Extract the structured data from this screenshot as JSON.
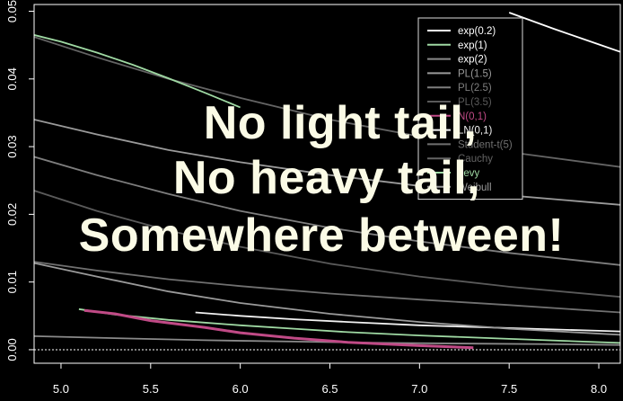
{
  "chart_data": {
    "type": "line",
    "xlim": [
      4.85,
      8.12
    ],
    "ylim": [
      -0.002,
      0.051
    ],
    "x_ticks": [
      "5.0",
      "5.5",
      "6.0",
      "6.5",
      "7.0",
      "7.5",
      "8.0"
    ],
    "y_ticks": [
      "0.00",
      "0.01",
      "0.02",
      "0.03",
      "0.04",
      "0.05"
    ],
    "grid": false,
    "legend_position": "top-right",
    "series": [
      {
        "name": "exp(0.2)",
        "color": "#ffffff",
        "x": [
          7.5,
          7.75,
          8.0,
          8.12
        ],
        "y": [
          0.0498,
          0.0474,
          0.0451,
          0.044
        ]
      },
      {
        "name": "exp(1)",
        "color": "#9fd9a3",
        "x": [
          5.1,
          5.3,
          5.6,
          5.8,
          6.0,
          6.3,
          6.6,
          7.0,
          7.5,
          8.12
        ],
        "y": [
          0.006,
          0.0052,
          0.0044,
          0.004,
          0.0036,
          0.0031,
          0.0026,
          0.0021,
          0.0016,
          0.001
        ]
      },
      {
        "name": "exp(2)",
        "color": "#8a8a8a",
        "x": [
          4.85,
          5.3,
          5.8,
          6.3,
          6.8,
          7.3,
          7.8,
          8.12
        ],
        "y": [
          0.002,
          0.0017,
          0.0014,
          0.0012,
          0.001,
          0.0009,
          0.0008,
          0.0007
        ]
      },
      {
        "name": "PL(1.5)",
        "color": "#9a9a9a",
        "x": [
          4.85,
          5.2,
          5.6,
          6.0,
          6.5,
          7.0,
          7.5,
          8.12
        ],
        "y": [
          0.034,
          0.0318,
          0.0295,
          0.0277,
          0.0258,
          0.0242,
          0.0228,
          0.0214
        ]
      },
      {
        "name": "PL(2.5)",
        "color": "#7e7e7e",
        "x": [
          4.85,
          5.2,
          5.6,
          6.0,
          6.5,
          7.0,
          7.5,
          8.12
        ],
        "y": [
          0.0285,
          0.0258,
          0.023,
          0.0205,
          0.018,
          0.016,
          0.0143,
          0.0125
        ]
      },
      {
        "name": "PL(3.5)",
        "color": "#5a5a5a",
        "x": [
          4.85,
          5.2,
          5.6,
          6.0,
          6.5,
          7.0,
          7.5,
          8.12
        ],
        "y": [
          0.0235,
          0.0205,
          0.0176,
          0.0152,
          0.0127,
          0.0108,
          0.0093,
          0.0078
        ]
      },
      {
        "name": "N(0,1)",
        "color": "#c04a86",
        "x": [
          5.13,
          5.3,
          5.5,
          5.8,
          6.0,
          6.3,
          6.6,
          7.0,
          7.3
        ],
        "y": [
          0.0058,
          0.0053,
          0.0043,
          0.0033,
          0.0025,
          0.0017,
          0.0011,
          0.0006,
          0.0003
        ]
      },
      {
        "name": "LN(0,1)",
        "color": "#f2f2f2",
        "x": [
          5.75,
          6.0,
          6.3,
          6.6,
          7.0,
          7.5,
          8.0,
          8.12
        ],
        "y": [
          0.0055,
          0.005,
          0.0045,
          0.0041,
          0.0036,
          0.0032,
          0.0028,
          0.0027
        ]
      },
      {
        "name": "Student-t(5)",
        "color": "#707070",
        "x": [
          4.85,
          5.2,
          5.6,
          6.0,
          6.5,
          7.0,
          7.5,
          8.12
        ],
        "y": [
          0.013,
          0.0117,
          0.0104,
          0.0094,
          0.0083,
          0.0074,
          0.0066,
          0.0055
        ]
      },
      {
        "name": "Cauchy",
        "color": "#646464",
        "x": [
          4.85,
          5.2,
          5.6,
          6.0,
          6.5,
          7.0,
          7.5,
          8.12
        ],
        "y": [
          0.0462,
          0.0432,
          0.04,
          0.0372,
          0.034,
          0.0315,
          0.0292,
          0.027
        ]
      },
      {
        "name": "Levy",
        "color": "#9fd9a3",
        "x": [
          4.85,
          5.0,
          5.2,
          5.4,
          5.6,
          5.8,
          6.0
        ],
        "y": [
          0.0465,
          0.0455,
          0.0439,
          0.0421,
          0.0401,
          0.038,
          0.0358
        ]
      },
      {
        "name": "Weibull",
        "color": "#9a9a9a",
        "x": [
          4.85,
          5.2,
          5.6,
          6.0,
          6.5,
          7.0,
          7.5,
          8.12
        ],
        "y": [
          0.0128,
          0.0108,
          0.0086,
          0.0069,
          0.0053,
          0.0041,
          0.0031,
          0.0022
        ]
      }
    ],
    "reference_line": {
      "y": 0.0,
      "color": "#ffffff"
    }
  },
  "overlay": {
    "lines": [
      "No light tail,",
      "No heavy tail,",
      "Somewhere between!"
    ]
  }
}
